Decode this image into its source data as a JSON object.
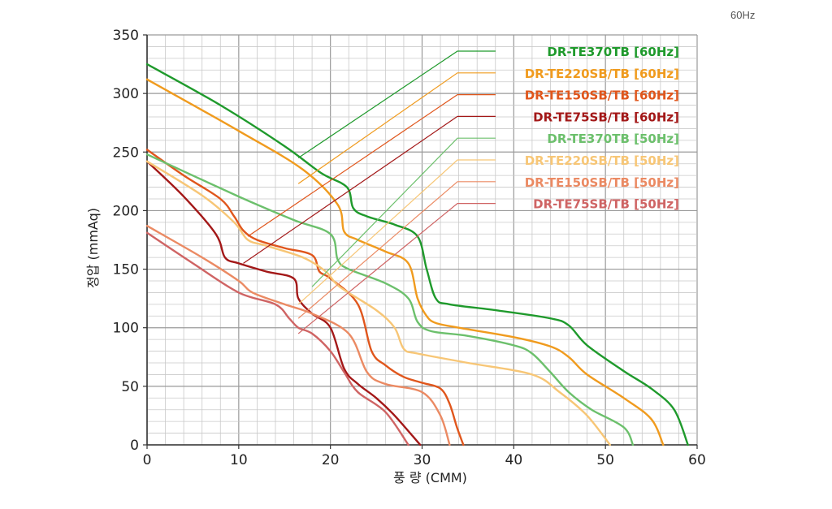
{
  "corner_label": "60Hz",
  "chart_data": {
    "type": "line",
    "title": "",
    "xlabel": "풍 량 (CMM)",
    "ylabel": "정압 (mmAq)",
    "xlim": [
      0,
      60
    ],
    "ylim": [
      0,
      350
    ],
    "xticks": [
      0,
      10,
      20,
      30,
      40,
      50,
      60
    ],
    "yticks": [
      0,
      50,
      100,
      150,
      200,
      250,
      300,
      350
    ],
    "grid": true,
    "legend_position": "top-right",
    "series": [
      {
        "name": "DR-TE370TB [60Hz]",
        "color": "#1f9a2c",
        "callout": [
          16.5,
          245
        ],
        "x": [
          0,
          8,
          15,
          19,
          21.8,
          22.5,
          24,
          27,
          29.5,
          30.5,
          31.5,
          33,
          38,
          44,
          46,
          48,
          52,
          55,
          57.5,
          59
        ],
        "y": [
          325,
          290,
          255,
          232,
          220,
          202,
          195,
          188,
          178,
          150,
          125,
          120,
          115,
          108,
          102,
          85,
          63,
          48,
          30,
          0
        ]
      },
      {
        "name": "DR-TE220SB/TB [60Hz]",
        "color": "#f09b1e",
        "callout": [
          16.5,
          223
        ],
        "x": [
          0,
          10,
          17,
          20.8,
          21.5,
          23,
          26,
          28.5,
          29.5,
          30.5,
          31.5,
          34,
          40,
          44,
          46,
          48,
          52,
          55,
          56.3
        ],
        "y": [
          312,
          268,
          235,
          205,
          182,
          175,
          165,
          155,
          125,
          110,
          104,
          100,
          92,
          84,
          75,
          60,
          40,
          22,
          0
        ]
      },
      {
        "name": "DR-TE150SB/TB [60Hz]",
        "color": "#e0561c",
        "callout": [
          11,
          178
        ],
        "x": [
          0,
          4,
          8,
          9.5,
          10.5,
          12,
          15,
          18,
          18.8,
          20,
          23,
          24.5,
          26,
          28,
          30,
          32,
          33,
          33.8,
          34.5
        ],
        "y": [
          252,
          230,
          210,
          195,
          183,
          175,
          168,
          162,
          148,
          142,
          120,
          80,
          68,
          58,
          53,
          48,
          35,
          15,
          0
        ]
      },
      {
        "name": "DR-TE75SB/TB [60Hz]",
        "color": "#a31818",
        "callout": [
          10.5,
          155
        ],
        "x": [
          0,
          4,
          7.5,
          8.5,
          10,
          13,
          16,
          16.5,
          18,
          20,
          21.5,
          23,
          25,
          27,
          29.8
        ],
        "y": [
          242,
          212,
          180,
          160,
          155,
          148,
          142,
          125,
          112,
          100,
          65,
          52,
          40,
          25,
          0
        ]
      },
      {
        "name": "DR-TE370TB [50Hz]",
        "color": "#6cc06c",
        "callout": [
          18,
          135
        ],
        "x": [
          0,
          10,
          16,
          20,
          20.8,
          22,
          26,
          28.5,
          29.5,
          31,
          35,
          40,
          42,
          44,
          46,
          48.5,
          52,
          53
        ],
        "y": [
          248,
          212,
          192,
          180,
          158,
          150,
          138,
          125,
          105,
          97,
          93,
          85,
          78,
          62,
          45,
          30,
          15,
          0
        ]
      },
      {
        "name": "DR-TE220SB/TB [50Hz]",
        "color": "#f7c676",
        "callout": [
          16.5,
          120
        ],
        "x": [
          0,
          6,
          9.5,
          11,
          13,
          17,
          19.5,
          21,
          25,
          27,
          28,
          29.5,
          35,
          42,
          45,
          48,
          50.5
        ],
        "y": [
          242,
          213,
          190,
          175,
          170,
          160,
          148,
          135,
          115,
          100,
          82,
          78,
          70,
          60,
          45,
          25,
          0
        ]
      },
      {
        "name": "DR-TE150SB/TB [50Hz]",
        "color": "#eb8a63",
        "callout": [
          16.5,
          108
        ],
        "x": [
          0,
          6,
          10,
          11.5,
          15,
          18,
          22,
          24,
          26,
          30,
          32,
          33
        ],
        "y": [
          187,
          160,
          140,
          130,
          120,
          112,
          95,
          62,
          52,
          45,
          25,
          0
        ]
      },
      {
        "name": "DR-TE75SB/TB [50Hz]",
        "color": "#cf6464",
        "callout": [
          16.5,
          95
        ],
        "x": [
          0,
          5,
          10,
          14,
          15.5,
          16.5,
          18,
          20,
          21.5,
          23,
          26,
          28.5
        ],
        "y": [
          181,
          155,
          130,
          120,
          108,
          100,
          95,
          80,
          62,
          45,
          28,
          0
        ]
      }
    ]
  }
}
